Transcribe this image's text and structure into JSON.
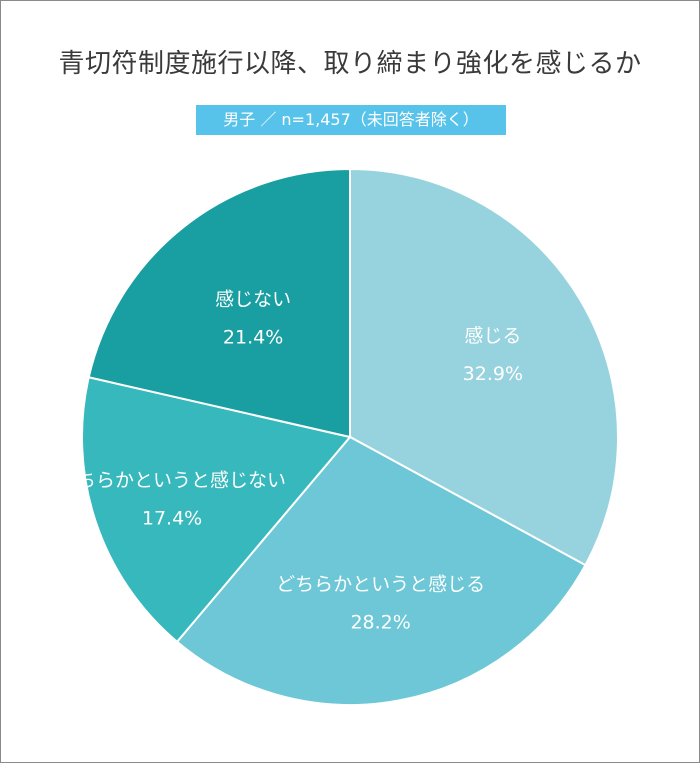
{
  "chart_data": {
    "type": "pie",
    "title": "青切符制度施行以降、取り締まり強化を感じるか",
    "subtitle": "男子 ／ n=1,457（未回答者除く）",
    "categories": [
      "感じる",
      "どちらかというと感じる",
      "どちらかというと感じない",
      "感じない"
    ],
    "values": [
      32.9,
      28.2,
      17.4,
      21.4
    ],
    "value_labels": [
      "32.9%",
      "28.2%",
      "17.4%",
      "21.4%"
    ],
    "colors": [
      "#97d3de",
      "#6dc7d6",
      "#36b8bc",
      "#199fa1"
    ],
    "start_angle_deg": 0,
    "direction": "clockwise"
  }
}
